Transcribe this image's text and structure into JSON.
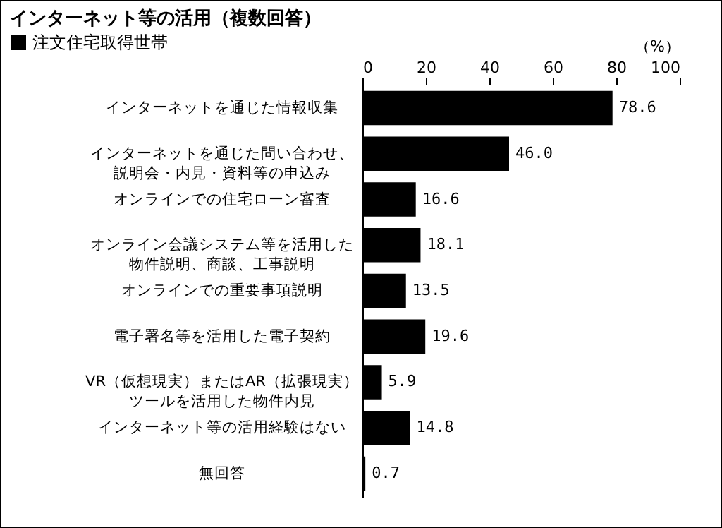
{
  "chart_data": {
    "type": "bar",
    "orientation": "horizontal",
    "title": "インターネット等の活用（複数回答）",
    "xlabel": "（%）",
    "categories": [
      "インターネットを通じた情報収集",
      "インターネットを通じた問い合わせ、説明会・内見・資料等の申込み",
      "オンラインでの住宅ローン審査",
      "オンライン会議システム等を活用した物件説明、商談、工事説明",
      "オンラインでの重要事項説明",
      "電子署名等を活用した電子契約",
      "VR（仮想現実）またはAR（拡張現実）ツールを活用した物件内見",
      "インターネット等の活用経験はない",
      "無回答"
    ],
    "series": [
      {
        "name": "注文住宅取得世帯",
        "color": "#000000",
        "values": [
          78.6,
          46.0,
          16.6,
          18.1,
          13.5,
          19.6,
          5.9,
          14.8,
          0.7
        ],
        "value_labels": [
          "78.6",
          "46.0",
          "16.6",
          "18.1",
          "13.5",
          "19.6",
          "5.9",
          "14.8",
          "0.7"
        ]
      }
    ],
    "xlim": [
      0,
      100
    ],
    "xticks": [
      0,
      20,
      40,
      60,
      80,
      100
    ],
    "legend": "top left",
    "grid": false
  }
}
